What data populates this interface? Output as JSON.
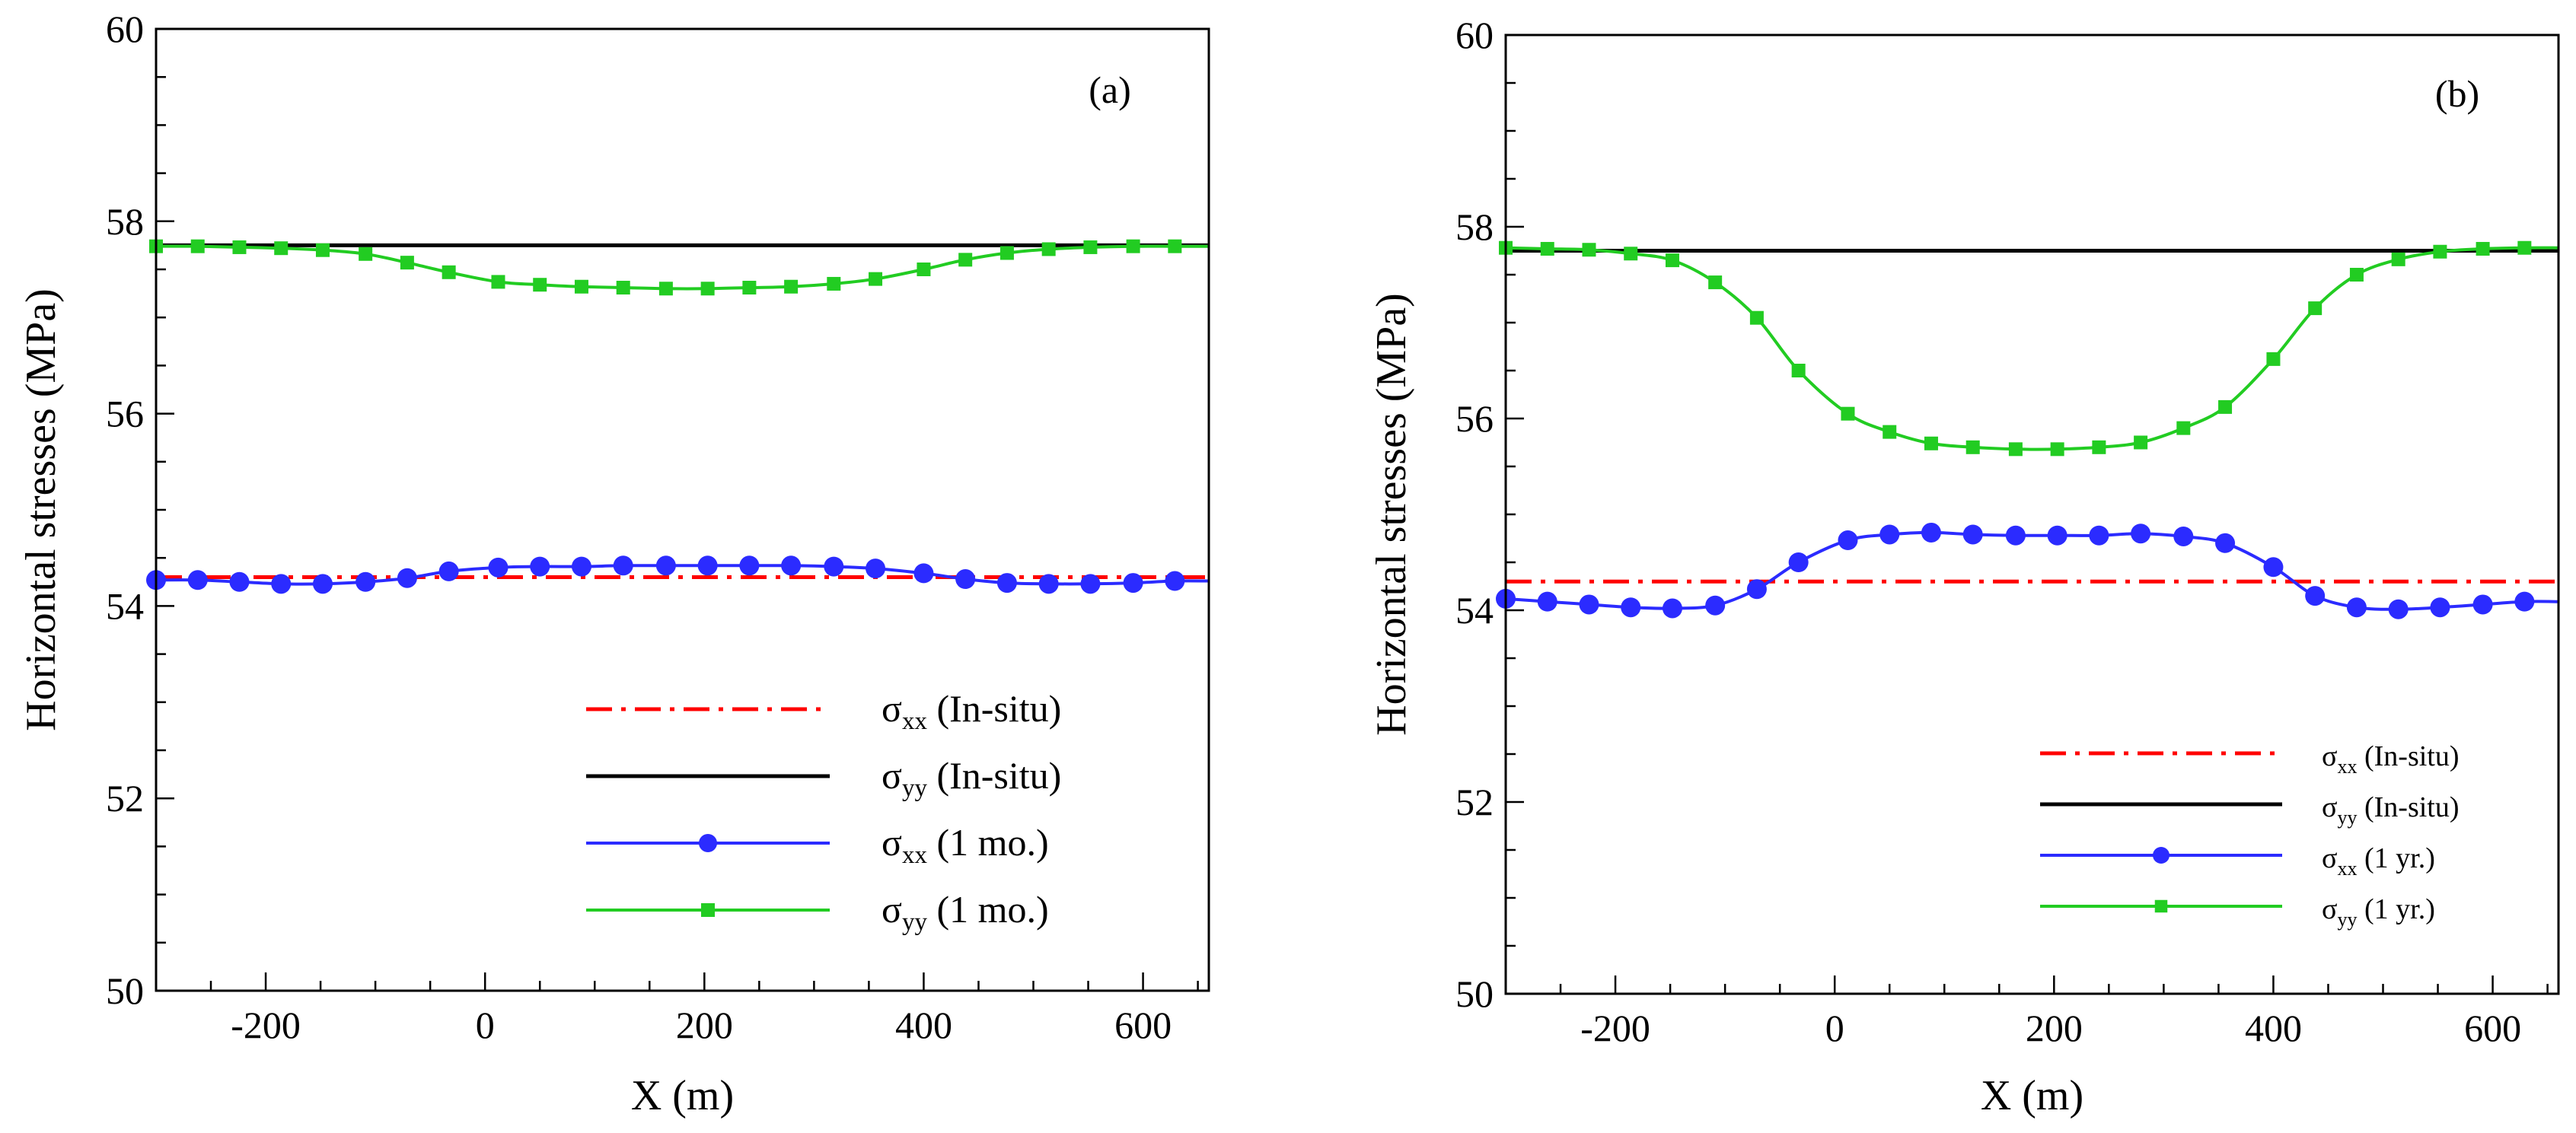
{
  "chart_data": [
    {
      "type": "line",
      "panel_label": "(a)",
      "xlabel": "X (m)",
      "ylabel": "Horizontal stresses (MPa)",
      "xlim": [
        -300,
        660
      ],
      "ylim": [
        50,
        60
      ],
      "xticks": [
        -200,
        0,
        200,
        400,
        600
      ],
      "xtick_labels": [
        "-200",
        "0",
        "200",
        "400",
        "600"
      ],
      "yticks": [
        50,
        52,
        54,
        56,
        58,
        60
      ],
      "ytick_labels": [
        "50",
        "52",
        "54",
        "56",
        "58",
        "60"
      ],
      "legend_position": "bottom-right",
      "series": [
        {
          "legend_symbol": "σ",
          "legend_sub": "xx",
          "legend_rest": " (In-situ)",
          "color": "#ff0000",
          "style": "dashdot",
          "marker": "none",
          "x": [
            -300,
            660
          ],
          "y": [
            54.3,
            54.3
          ]
        },
        {
          "legend_symbol": "σ",
          "legend_sub": "yy",
          "legend_rest": " (In-situ)",
          "color": "#000000",
          "style": "solid",
          "marker": "none",
          "x": [
            -300,
            660
          ],
          "y": [
            57.75,
            57.75
          ]
        },
        {
          "legend_symbol": "σ",
          "legend_sub": "xx",
          "legend_rest": " (1 mo.)",
          "color": "#2b2bff",
          "style": "solid",
          "marker": "circle",
          "x": [
            -300,
            -262,
            -224,
            -186,
            -148,
            -109,
            -71,
            -33,
            12,
            50,
            88,
            126,
            165,
            203,
            241,
            279,
            318,
            356,
            400,
            438,
            476,
            514,
            552,
            591,
            629
          ],
          "y": [
            54.27,
            54.27,
            54.25,
            54.23,
            54.23,
            54.25,
            54.29,
            54.36,
            54.4,
            54.41,
            54.41,
            54.42,
            54.42,
            54.42,
            54.42,
            54.42,
            54.41,
            54.39,
            54.34,
            54.28,
            54.24,
            54.23,
            54.23,
            54.24,
            54.26
          ]
        },
        {
          "legend_symbol": "σ",
          "legend_sub": "yy",
          "legend_rest": " (1 mo.)",
          "color": "#22cc22",
          "style": "solid",
          "marker": "square",
          "x": [
            -300,
            -262,
            -224,
            -186,
            -148,
            -109,
            -71,
            -33,
            12,
            50,
            88,
            126,
            165,
            203,
            241,
            279,
            318,
            356,
            400,
            438,
            476,
            514,
            552,
            591,
            629
          ],
          "y": [
            57.74,
            57.74,
            57.73,
            57.72,
            57.7,
            57.66,
            57.57,
            57.47,
            57.37,
            57.34,
            57.32,
            57.31,
            57.3,
            57.3,
            57.31,
            57.32,
            57.35,
            57.4,
            57.5,
            57.6,
            57.67,
            57.71,
            57.73,
            57.74,
            57.74
          ]
        }
      ]
    },
    {
      "type": "line",
      "panel_label": "(b)",
      "xlabel": "X (m)",
      "ylabel": "Horizontal stresses (MPa)",
      "xlim": [
        -300,
        660
      ],
      "ylim": [
        50,
        60
      ],
      "xticks": [
        -200,
        0,
        200,
        400,
        600
      ],
      "xtick_labels": [
        "-200",
        "0",
        "200",
        "400",
        "600"
      ],
      "yticks": [
        50,
        52,
        54,
        56,
        58,
        60
      ],
      "ytick_labels": [
        "50",
        "52",
        "54",
        "56",
        "58",
        "60"
      ],
      "legend_position": "bottom-right",
      "series": [
        {
          "legend_symbol": "σ",
          "legend_sub": "xx",
          "legend_rest": " (In-situ)",
          "color": "#ff0000",
          "style": "dashdot",
          "marker": "none",
          "x": [
            -300,
            660
          ],
          "y": [
            54.3,
            54.3
          ]
        },
        {
          "legend_symbol": "σ",
          "legend_sub": "yy",
          "legend_rest": " (In-situ)",
          "color": "#000000",
          "style": "solid",
          "marker": "none",
          "x": [
            -300,
            660
          ],
          "y": [
            57.75,
            57.75
          ]
        },
        {
          "legend_symbol": "σ",
          "legend_sub": "xx",
          "legend_rest": " (1 yr.)",
          "color": "#2b2bff",
          "style": "solid",
          "marker": "circle",
          "x": [
            -300,
            -262,
            -224,
            -186,
            -148,
            -109,
            -71,
            -33,
            12,
            50,
            88,
            126,
            165,
            203,
            241,
            279,
            318,
            356,
            400,
            438,
            476,
            514,
            552,
            591,
            629
          ],
          "y": [
            54.12,
            54.09,
            54.06,
            54.03,
            54.02,
            54.05,
            54.22,
            54.5,
            54.73,
            54.79,
            54.81,
            54.79,
            54.78,
            54.78,
            54.78,
            54.8,
            54.77,
            54.7,
            54.45,
            54.15,
            54.03,
            54.01,
            54.03,
            54.06,
            54.09
          ]
        },
        {
          "legend_symbol": "σ",
          "legend_sub": "yy",
          "legend_rest": " (1 yr.)",
          "color": "#22cc22",
          "style": "solid",
          "marker": "square",
          "x": [
            -300,
            -262,
            -224,
            -186,
            -148,
            -109,
            -71,
            -33,
            12,
            50,
            88,
            126,
            165,
            203,
            241,
            279,
            318,
            356,
            400,
            438,
            476,
            514,
            552,
            591,
            629
          ],
          "y": [
            57.78,
            57.77,
            57.76,
            57.72,
            57.65,
            57.42,
            57.05,
            56.5,
            56.05,
            55.86,
            55.74,
            55.7,
            55.68,
            55.68,
            55.7,
            55.75,
            55.9,
            56.12,
            56.62,
            57.15,
            57.5,
            57.66,
            57.74,
            57.77,
            57.78
          ]
        }
      ]
    }
  ]
}
